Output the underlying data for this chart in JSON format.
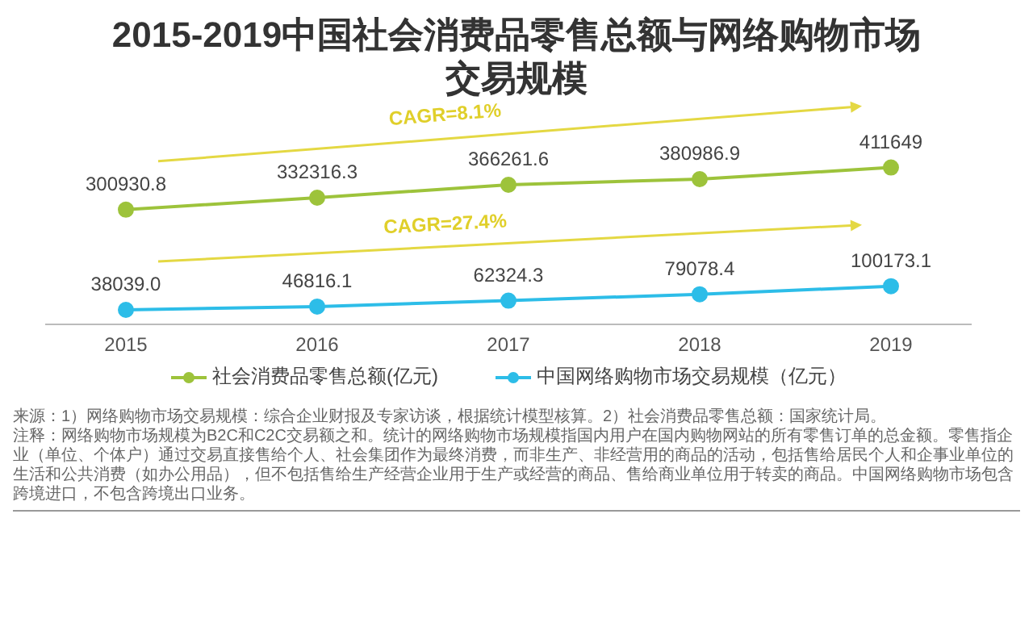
{
  "chart_data": {
    "type": "line",
    "title": "2015-2019中国社会消费品零售总额与网络购物市场交易规模",
    "categories": [
      "2015",
      "2016",
      "2017",
      "2018",
      "2019"
    ],
    "series": [
      {
        "name": "社会消费品零售总额(亿元)",
        "color": "#9dc33b",
        "values": [
          300930.8,
          332316.3,
          366261.6,
          380986.9,
          411649
        ],
        "value_labels": [
          "300930.8",
          "332316.3",
          "366261.6",
          "380986.9",
          "411649"
        ]
      },
      {
        "name": "中国网络购物市场交易规模（亿元）",
        "color": "#2dbde8",
        "values": [
          38039.0,
          46816.1,
          62324.3,
          79078.4,
          100173.1
        ],
        "value_labels": [
          "38039.0",
          "46816.1",
          "62324.3",
          "79078.4",
          "100173.1"
        ]
      }
    ],
    "marker": "circle",
    "legend": "bottom",
    "tick_labels": "x",
    "annotations": [
      "CAGR=8.1%",
      "CAGR=27.4%",
      "来源：1）网络购物市场交易规模：综合企业财报及专家访谈，根据统计模型核算。2）社会消费品零售总额：国家统计局。",
      "注释：网络购物市场规模为B2C和C2C交易额之和。统计的网络购物市场规模指国内用户在国内购物网站的所有零售订单的总金额。零售指企业（单位、个体户）通过交易直接售给个人、社会集团作为最终消费，而非生产、非经营用的商品的活动，包括售给居民个人和企事业单位的生活和公共消费（如办公用品），但不包括售给生产经营企业用于生产或经营的商品、售给商业单位用于转卖的商品。中国网络购物市场包含跨境进口，不包含跨境出口业务。"
    ]
  }
}
